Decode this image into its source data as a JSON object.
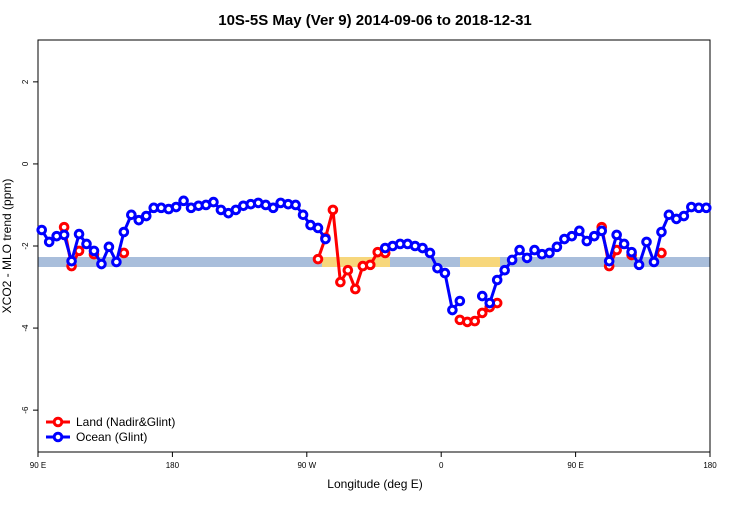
{
  "chart_data": {
    "type": "line",
    "title": "10S-5S May (Ver 9)   2014-09-06 to 2018-12-31",
    "x_label": "Longitude (deg E)",
    "y_label": "XCO2 - MLO trend (ppm)",
    "xlim": [
      90,
      540
    ],
    "ylim": [
      -7.02,
      3.02
    ],
    "xticks": [
      {
        "value": 90,
        "label": "90 E"
      },
      180,
      {
        "value": 270,
        "label": "90 W"
      },
      {
        "value": 360,
        "label": "0"
      },
      {
        "value": 450,
        "label": "90 E"
      },
      {
        "value": 540,
        "label": "180"
      }
    ],
    "yticks": [
      -6,
      -4,
      -2,
      0,
      2
    ],
    "legend_position": "bottom-left",
    "x": [
      92.5,
      97.5,
      102.5,
      107.5,
      112.5,
      117.5,
      122.5,
      127.5,
      132.5,
      137.5,
      142.5,
      147.5,
      152.5,
      157.5,
      162.5,
      167.5,
      172.5,
      177.5,
      182.5,
      187.5,
      192.5,
      197.5,
      202.5,
      207.5,
      212.5,
      217.5,
      222.5,
      227.5,
      232.5,
      237.5,
      242.5,
      247.5,
      252.5,
      257.5,
      262.5,
      267.5,
      272.5,
      277.5,
      282.5,
      287.5,
      292.5,
      297.5,
      302.5,
      307.5,
      312.5,
      317.5,
      322.5,
      327.5,
      332.5,
      337.5,
      342.5,
      347.5,
      352.5,
      357.5,
      362.5,
      367.5,
      372.5,
      377.5,
      382.5,
      387.5,
      392.5,
      397.5,
      402.5,
      407.5,
      412.5,
      417.5,
      422.5,
      427.5,
      432.5,
      437.5,
      442.5,
      447.5,
      452.5,
      457.5,
      462.5,
      467.5,
      472.5,
      477.5,
      482.5,
      487.5,
      492.5,
      497.5,
      502.5,
      507.5,
      512.5,
      517.5,
      522.5,
      527.5,
      532.5,
      537.5
    ],
    "series": [
      {
        "name": "Land (Nadir&Glint)",
        "color": "#ff0000",
        "values": [
          null,
          null,
          null,
          -1.54,
          -2.49,
          -2.12,
          null,
          -2.2,
          null,
          null,
          null,
          -2.17,
          null,
          null,
          null,
          null,
          null,
          null,
          null,
          null,
          null,
          null,
          null,
          null,
          null,
          null,
          null,
          null,
          null,
          null,
          null,
          null,
          null,
          null,
          null,
          null,
          null,
          -2.32,
          -1.8,
          -1.12,
          -2.88,
          -2.59,
          -3.05,
          -2.49,
          -2.46,
          -2.15,
          -2.17,
          null,
          null,
          null,
          null,
          null,
          null,
          null,
          null,
          null,
          -3.8,
          -3.85,
          -3.83,
          -3.63,
          -3.49,
          -3.39,
          null,
          null,
          null,
          null,
          null,
          null,
          null,
          null,
          null,
          null,
          null,
          null,
          null,
          -1.54,
          -2.49,
          -2.1,
          null,
          -2.22,
          null,
          null,
          null,
          -2.17,
          null,
          null,
          null,
          null,
          null,
          null
        ]
      },
      {
        "name": "Ocean (Glint)",
        "color": "#0000ff",
        "values": [
          -1.61,
          -1.9,
          -1.76,
          -1.73,
          -2.37,
          -1.71,
          -1.95,
          -2.12,
          -2.44,
          -2.02,
          -2.39,
          -1.66,
          -1.24,
          -1.37,
          -1.27,
          -1.07,
          -1.07,
          -1.1,
          -1.05,
          -0.9,
          -1.07,
          -1.02,
          -1.0,
          -0.93,
          -1.12,
          -1.2,
          -1.12,
          -1.02,
          -0.98,
          -0.95,
          -1.0,
          -1.07,
          -0.95,
          -0.98,
          -1.0,
          -1.24,
          -1.49,
          -1.56,
          -1.83,
          null,
          null,
          null,
          null,
          null,
          null,
          null,
          -2.05,
          -2.0,
          -1.95,
          -1.95,
          -2.0,
          -2.05,
          -2.17,
          -2.54,
          -2.66,
          -3.56,
          -3.34,
          null,
          null,
          -3.22,
          -3.39,
          -2.83,
          -2.59,
          -2.34,
          -2.1,
          -2.29,
          -2.1,
          -2.2,
          -2.17,
          -2.02,
          -1.83,
          -1.76,
          -1.63,
          -1.88,
          -1.76,
          -1.63,
          -2.37,
          -1.73,
          -1.95,
          -2.15,
          -2.46,
          -1.9,
          -2.39,
          -1.66,
          -1.24,
          -1.34,
          -1.27,
          -1.05,
          -1.07,
          -1.07
        ]
      }
    ]
  }
}
